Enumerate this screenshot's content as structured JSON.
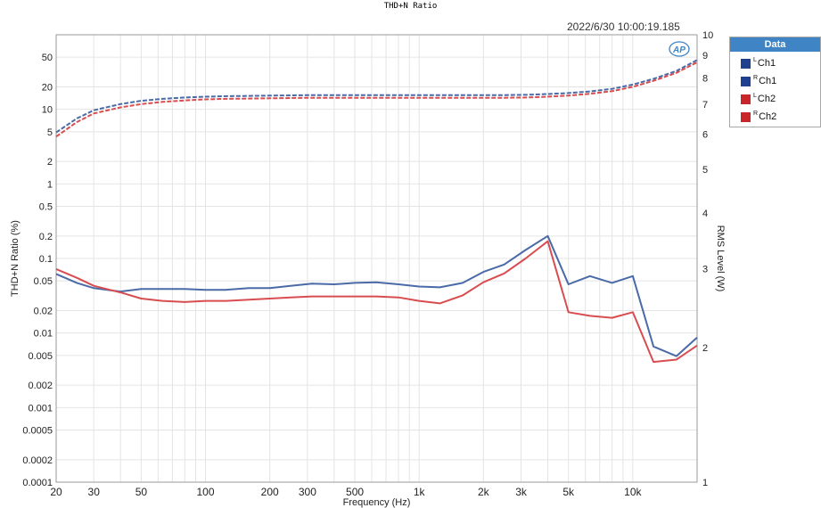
{
  "chart_data": {
    "type": "line",
    "title": "THD+N Ratio",
    "timestamp": "2022/6/30 10:00:19.185",
    "xlabel": "Frequency (Hz)",
    "ylabel_left": "THD+N Ratio (%)",
    "ylabel_right": "RMS Level (W)",
    "x_scale": "log",
    "xlim": [
      20,
      20000
    ],
    "ylim_left": [
      0.0001,
      100
    ],
    "ylim_right": [
      1,
      10
    ],
    "y_scale": "log",
    "x_ticks": [
      {
        "v": 20,
        "label": "20"
      },
      {
        "v": 30,
        "label": "30"
      },
      {
        "v": 50,
        "label": "50"
      },
      {
        "v": 100,
        "label": "100"
      },
      {
        "v": 200,
        "label": "200"
      },
      {
        "v": 300,
        "label": "300"
      },
      {
        "v": 500,
        "label": "500"
      },
      {
        "v": 1000,
        "label": "1k"
      },
      {
        "v": 2000,
        "label": "2k"
      },
      {
        "v": 3000,
        "label": "3k"
      },
      {
        "v": 5000,
        "label": "5k"
      },
      {
        "v": 10000,
        "label": "10k"
      }
    ],
    "y_left_ticks": [
      {
        "v": 50,
        "label": "50"
      },
      {
        "v": 20,
        "label": "20"
      },
      {
        "v": 10,
        "label": "10"
      },
      {
        "v": 5,
        "label": "5"
      },
      {
        "v": 2,
        "label": "2"
      },
      {
        "v": 1,
        "label": "1"
      },
      {
        "v": 0.5,
        "label": "0.5"
      },
      {
        "v": 0.2,
        "label": "0.2"
      },
      {
        "v": 0.1,
        "label": "0.1"
      },
      {
        "v": 0.05,
        "label": "0.05"
      },
      {
        "v": 0.02,
        "label": "0.02"
      },
      {
        "v": 0.01,
        "label": "0.01"
      },
      {
        "v": 0.005,
        "label": "0.005"
      },
      {
        "v": 0.002,
        "label": "0.002"
      },
      {
        "v": 0.001,
        "label": "0.001"
      },
      {
        "v": 0.0005,
        "label": "0.0005"
      },
      {
        "v": 0.0002,
        "label": "0.0002"
      },
      {
        "v": 0.0001,
        "label": "0.0001"
      }
    ],
    "y_right_ticks": [
      {
        "v": 10,
        "label": "10"
      },
      {
        "v": 9,
        "label": "9"
      },
      {
        "v": 8,
        "label": "8"
      },
      {
        "v": 7,
        "label": "7"
      },
      {
        "v": 6,
        "label": "6"
      },
      {
        "v": 5,
        "label": "5"
      },
      {
        "v": 4,
        "label": "4"
      },
      {
        "v": 3,
        "label": "3"
      },
      {
        "v": 2,
        "label": "2"
      },
      {
        "v": 1,
        "label": "1"
      }
    ],
    "grid": true,
    "legend_title": "Data",
    "series": [
      {
        "name": "Ch1",
        "sup": "L",
        "color": "#1f3f8f",
        "line_color": "#4a6aa8",
        "axis": "left",
        "style": "solid",
        "x": [
          20,
          25,
          30,
          40,
          50,
          63,
          80,
          100,
          125,
          160,
          200,
          250,
          315,
          400,
          500,
          630,
          800,
          1000,
          1250,
          1600,
          2000,
          2500,
          3150,
          4000,
          5000,
          6300,
          8000,
          10000,
          12500,
          16000,
          20000
        ],
        "y": [
          0.062,
          0.047,
          0.04,
          0.036,
          0.039,
          0.039,
          0.039,
          0.038,
          0.038,
          0.04,
          0.04,
          0.043,
          0.046,
          0.045,
          0.047,
          0.048,
          0.045,
          0.042,
          0.041,
          0.047,
          0.066,
          0.083,
          0.13,
          0.2,
          0.045,
          0.058,
          0.047,
          0.058,
          0.0066,
          0.0049,
          0.0087
        ]
      },
      {
        "name": "Ch1",
        "sup": "R",
        "color": "#1f3f8f",
        "line_color": "#4a6aa8",
        "axis": "right",
        "style": "dashed",
        "x": [
          20,
          25,
          30,
          40,
          50,
          63,
          80,
          100,
          125,
          160,
          200,
          250,
          315,
          400,
          500,
          630,
          800,
          1000,
          1250,
          1600,
          2000,
          2500,
          3150,
          4000,
          5000,
          6300,
          8000,
          10000,
          12500,
          16000,
          20000
        ],
        "y": [
          6.05,
          6.5,
          6.78,
          7.0,
          7.12,
          7.19,
          7.24,
          7.27,
          7.29,
          7.3,
          7.31,
          7.32,
          7.33,
          7.33,
          7.33,
          7.33,
          7.33,
          7.33,
          7.33,
          7.33,
          7.33,
          7.33,
          7.34,
          7.37,
          7.41,
          7.47,
          7.57,
          7.74,
          7.97,
          8.3,
          8.78
        ]
      },
      {
        "name": "Ch2",
        "sup": "L",
        "color": "#c8262b",
        "line_color": "#d84d50",
        "axis": "left",
        "style": "solid",
        "x": [
          20,
          25,
          30,
          40,
          50,
          63,
          80,
          100,
          125,
          160,
          200,
          250,
          315,
          400,
          500,
          630,
          800,
          1000,
          1250,
          1600,
          2000,
          2500,
          3150,
          4000,
          5000,
          6300,
          8000,
          10000,
          12500,
          16000,
          20000
        ],
        "y": [
          0.072,
          0.055,
          0.043,
          0.035,
          0.029,
          0.027,
          0.026,
          0.027,
          0.027,
          0.028,
          0.029,
          0.03,
          0.031,
          0.031,
          0.031,
          0.031,
          0.03,
          0.027,
          0.025,
          0.032,
          0.048,
          0.063,
          0.1,
          0.17,
          0.019,
          0.017,
          0.016,
          0.019,
          0.0041,
          0.0044,
          0.0068
        ]
      },
      {
        "name": "Ch2",
        "sup": "R",
        "color": "#c8262b",
        "line_color": "#d84d50",
        "axis": "right",
        "style": "dashed",
        "x": [
          20,
          25,
          30,
          40,
          50,
          63,
          80,
          100,
          125,
          160,
          200,
          250,
          315,
          400,
          500,
          630,
          800,
          1000,
          1250,
          1600,
          2000,
          2500,
          3150,
          4000,
          5000,
          6300,
          8000,
          10000,
          12500,
          16000,
          20000
        ],
        "y": [
          5.92,
          6.38,
          6.67,
          6.88,
          7.0,
          7.08,
          7.13,
          7.17,
          7.19,
          7.2,
          7.21,
          7.22,
          7.23,
          7.23,
          7.23,
          7.23,
          7.23,
          7.23,
          7.23,
          7.23,
          7.23,
          7.23,
          7.24,
          7.27,
          7.31,
          7.38,
          7.48,
          7.65,
          7.89,
          8.22,
          8.68
        ]
      }
    ]
  },
  "logo_text": "AP"
}
